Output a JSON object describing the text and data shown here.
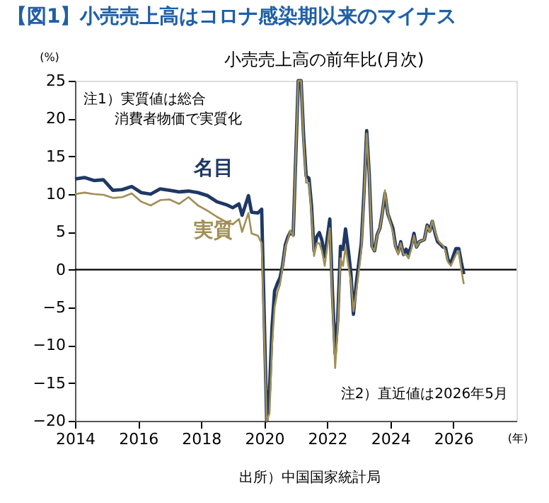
{
  "chart_data": {
    "type": "line",
    "title": "【図1】小売売上高はコロナ感染期以来のマイナス",
    "subtitle": "小売売上高の前年比(月次)",
    "xlabel": "(年)",
    "ylabel": "(%)",
    "series": [
      {
        "name": "名目",
        "color": "#1f3864",
        "x": [
          2014.0,
          2014.3,
          2014.6,
          2014.9,
          2015.2,
          2015.5,
          2015.8,
          2016.1,
          2016.4,
          2016.7,
          2017.0,
          2017.3,
          2017.6,
          2017.9,
          2018.2,
          2018.5,
          2018.8,
          2019.0,
          2019.2,
          2019.3,
          2019.5,
          2019.6,
          2019.8,
          2019.92,
          2020.08,
          2020.17,
          2020.25,
          2020.33,
          2020.42,
          2020.5,
          2020.58,
          2020.67,
          2020.75,
          2020.83,
          2020.92,
          2021.08,
          2021.17,
          2021.25,
          2021.33,
          2021.42,
          2021.5,
          2021.58,
          2021.67,
          2021.75,
          2021.83,
          2021.92,
          2022.08,
          2022.17,
          2022.25,
          2022.33,
          2022.42,
          2022.5,
          2022.58,
          2022.67,
          2022.75,
          2022.83,
          2022.92,
          2023.08,
          2023.17,
          2023.25,
          2023.33,
          2023.42,
          2023.5,
          2023.58,
          2023.67,
          2023.75,
          2023.83,
          2023.92,
          2024.08,
          2024.17,
          2024.25,
          2024.33,
          2024.42,
          2024.5,
          2024.58,
          2024.67,
          2024.75,
          2024.83,
          2024.92,
          2025.08,
          2025.17,
          2025.25,
          2025.33,
          2025.42,
          2025.5,
          2025.58,
          2025.67,
          2025.75,
          2025.83,
          2025.92,
          2026.08,
          2026.17,
          2026.25,
          2026.33
        ],
        "values": [
          12.0,
          12.2,
          11.8,
          11.9,
          10.5,
          10.6,
          11.0,
          10.2,
          10.0,
          10.7,
          10.5,
          10.3,
          10.4,
          10.2,
          9.8,
          9.0,
          8.6,
          8.2,
          8.7,
          7.2,
          9.8,
          7.6,
          7.5,
          8.0,
          -20,
          -15.8,
          -7.5,
          -2.8,
          -1.8,
          -1.1,
          0.5,
          3.3,
          4.3,
          5.0,
          4.6,
          25,
          25,
          17.7,
          12.4,
          12.1,
          8.5,
          2.5,
          4.4,
          4.9,
          3.9,
          1.7,
          6.7,
          -3.5,
          -11.1,
          -6.7,
          3.1,
          2.7,
          5.4,
          2.5,
          -0.5,
          -5.9,
          -1.8,
          3.5,
          10.6,
          18.4,
          12.7,
          3.1,
          2.5,
          4.6,
          5.5,
          7.6,
          10.1,
          7.4,
          5.5,
          3.1,
          2.3,
          3.7,
          2.0,
          2.7,
          2.1,
          3.2,
          4.8,
          3.0,
          3.7,
          4.0,
          5.9,
          5.1,
          6.4,
          4.8,
          3.7,
          3.4,
          3.0,
          2.9,
          1.3,
          0.9,
          2.8,
          2.8,
          1.0,
          -0.6
        ]
      },
      {
        "name": "実質",
        "color": "#a08f55",
        "x": [
          2014.0,
          2014.3,
          2014.6,
          2014.9,
          2015.2,
          2015.5,
          2015.8,
          2016.1,
          2016.4,
          2016.7,
          2017.0,
          2017.3,
          2017.6,
          2017.9,
          2018.2,
          2018.5,
          2018.8,
          2019.0,
          2019.2,
          2019.3,
          2019.5,
          2019.6,
          2019.8,
          2019.92,
          2020.08,
          2020.17,
          2020.25,
          2020.33,
          2020.42,
          2020.5,
          2020.58,
          2020.67,
          2020.75,
          2020.83,
          2020.92,
          2021.08,
          2021.17,
          2021.25,
          2021.33,
          2021.42,
          2021.5,
          2021.58,
          2021.67,
          2021.75,
          2021.83,
          2021.92,
          2022.08,
          2022.17,
          2022.25,
          2022.33,
          2022.42,
          2022.5,
          2022.58,
          2022.67,
          2022.75,
          2022.83,
          2022.92,
          2023.08,
          2023.17,
          2023.25,
          2023.33,
          2023.42,
          2023.5,
          2023.58,
          2023.67,
          2023.75,
          2023.83,
          2023.92,
          2024.08,
          2024.17,
          2024.25,
          2024.33,
          2024.42,
          2024.5,
          2024.58,
          2024.67,
          2024.75,
          2024.83,
          2024.92,
          2025.08,
          2025.17,
          2025.25,
          2025.33,
          2025.42,
          2025.5,
          2025.58,
          2025.67,
          2025.75,
          2025.83,
          2025.92,
          2026.08,
          2026.17,
          2026.25,
          2026.33
        ],
        "values": [
          10.0,
          10.2,
          10.0,
          9.9,
          9.5,
          9.6,
          10.1,
          9.0,
          8.5,
          9.2,
          9.3,
          8.7,
          9.6,
          8.5,
          7.8,
          7.0,
          6.3,
          6.0,
          6.7,
          5.0,
          7.5,
          4.8,
          4.5,
          3.5,
          -20,
          -19.0,
          -10.0,
          -5.0,
          -3.0,
          -2.0,
          0.2,
          3.0,
          4.0,
          5.2,
          4.4,
          25,
          25,
          17.0,
          11.5,
          11.5,
          7.5,
          1.8,
          3.5,
          3.5,
          2.5,
          0.5,
          5.5,
          -5.0,
          -13.0,
          -8.0,
          1.5,
          0.5,
          3.0,
          0.5,
          -1.5,
          -5.5,
          -3.0,
          2.5,
          10.0,
          18.0,
          12.5,
          3.0,
          2.5,
          4.5,
          5.5,
          7.5,
          10.5,
          7.5,
          5.0,
          3.0,
          2.0,
          3.5,
          2.0,
          2.0,
          1.5,
          2.8,
          4.5,
          3.0,
          3.7,
          4.0,
          5.8,
          5.0,
          6.5,
          5.0,
          4.0,
          3.5,
          3.2,
          2.5,
          1.0,
          0.5,
          2.0,
          2.5,
          0.0,
          -1.9
        ]
      }
    ],
    "xlim": [
      2014,
      2028
    ],
    "xticks": [
      2014,
      2016,
      2018,
      2020,
      2022,
      2024,
      2026
    ],
    "ylim": [
      -20,
      25
    ],
    "yticks": [
      -20,
      -15,
      -10,
      -5,
      0,
      5,
      10,
      15,
      20,
      25
    ],
    "ref_lines": [
      {
        "axis": "y",
        "value": 0,
        "color": "#000000"
      }
    ],
    "grid": false,
    "legend": false,
    "marker": "none",
    "line_style": "solid",
    "annotations": [
      "注1）実質値は総合",
      "消費者物価で実質化",
      "注2）直近値は2026年5月",
      "出所）中国国家統計局"
    ]
  }
}
